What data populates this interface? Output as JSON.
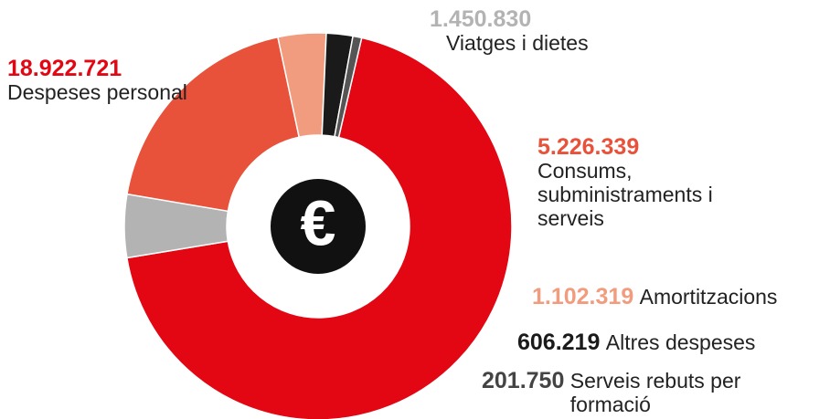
{
  "chart_data": {
    "type": "donut",
    "center_label": "€",
    "categories": [
      "Despeses personal",
      "Viatges i dietes",
      "Consums, subministraments i serveis",
      "Amortitzacions",
      "Altres despeses",
      "Serveis rebuts per formació"
    ],
    "values": [
      18922721,
      1450830,
      5226339,
      1102319,
      606219,
      201750
    ],
    "value_labels": [
      "18.922.721",
      "1.450.830",
      "5.226.339",
      "1.102.319",
      "606.219",
      "201.750"
    ],
    "colors": [
      "#e30613",
      "#b3b3b3",
      "#e8513a",
      "#f29c7f",
      "#1a1a1a",
      "#555555"
    ]
  }
}
